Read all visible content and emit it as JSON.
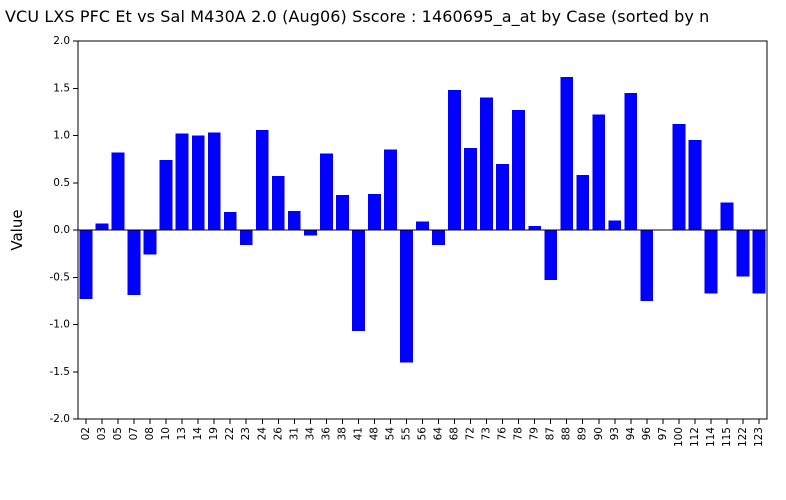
{
  "chart_data": {
    "type": "bar",
    "title": "VCU LXS PFC Et vs Sal M430A 2.0 (Aug06) Sscore : 1460695_a_at by Case (sorted by n",
    "xlabel": "",
    "ylabel": "Value",
    "ylim": [
      -2.0,
      2.0
    ],
    "ytick_step": 0.5,
    "ytick_labels": [
      "2.0",
      "1.5",
      "1.0",
      "0.5",
      "0.0",
      "-0.5",
      "-1.0",
      "-1.5",
      "-2.0"
    ],
    "grid": false,
    "legend": null,
    "bar_color": "#0000ff",
    "axis_color": "#000000",
    "background_color": "#ffffff",
    "x_label_rotation_deg": -90,
    "categories": [
      "02",
      "03",
      "05",
      "07",
      "08",
      "10",
      "13",
      "14",
      "19",
      "22",
      "23",
      "24",
      "26",
      "31",
      "34",
      "36",
      "38",
      "41",
      "48",
      "54",
      "55",
      "56",
      "64",
      "68",
      "72",
      "73",
      "76",
      "78",
      "79",
      "87",
      "88",
      "89",
      "90",
      "93",
      "94",
      "96",
      "97",
      "100",
      "112",
      "114",
      "115",
      "122",
      "123"
    ],
    "values": [
      -0.73,
      0.07,
      0.82,
      -0.69,
      -0.26,
      0.74,
      1.02,
      1.0,
      1.03,
      0.19,
      -0.16,
      1.06,
      0.57,
      0.2,
      -0.06,
      0.81,
      0.37,
      -1.07,
      0.38,
      0.85,
      -1.4,
      0.09,
      -0.16,
      1.48,
      0.87,
      1.4,
      0.7,
      1.27,
      0.04,
      -0.53,
      1.62,
      0.58,
      1.22,
      0.1,
      1.45,
      -0.75,
      0.0,
      1.12,
      0.95,
      -0.67,
      0.29,
      -0.49,
      -0.67
    ]
  }
}
